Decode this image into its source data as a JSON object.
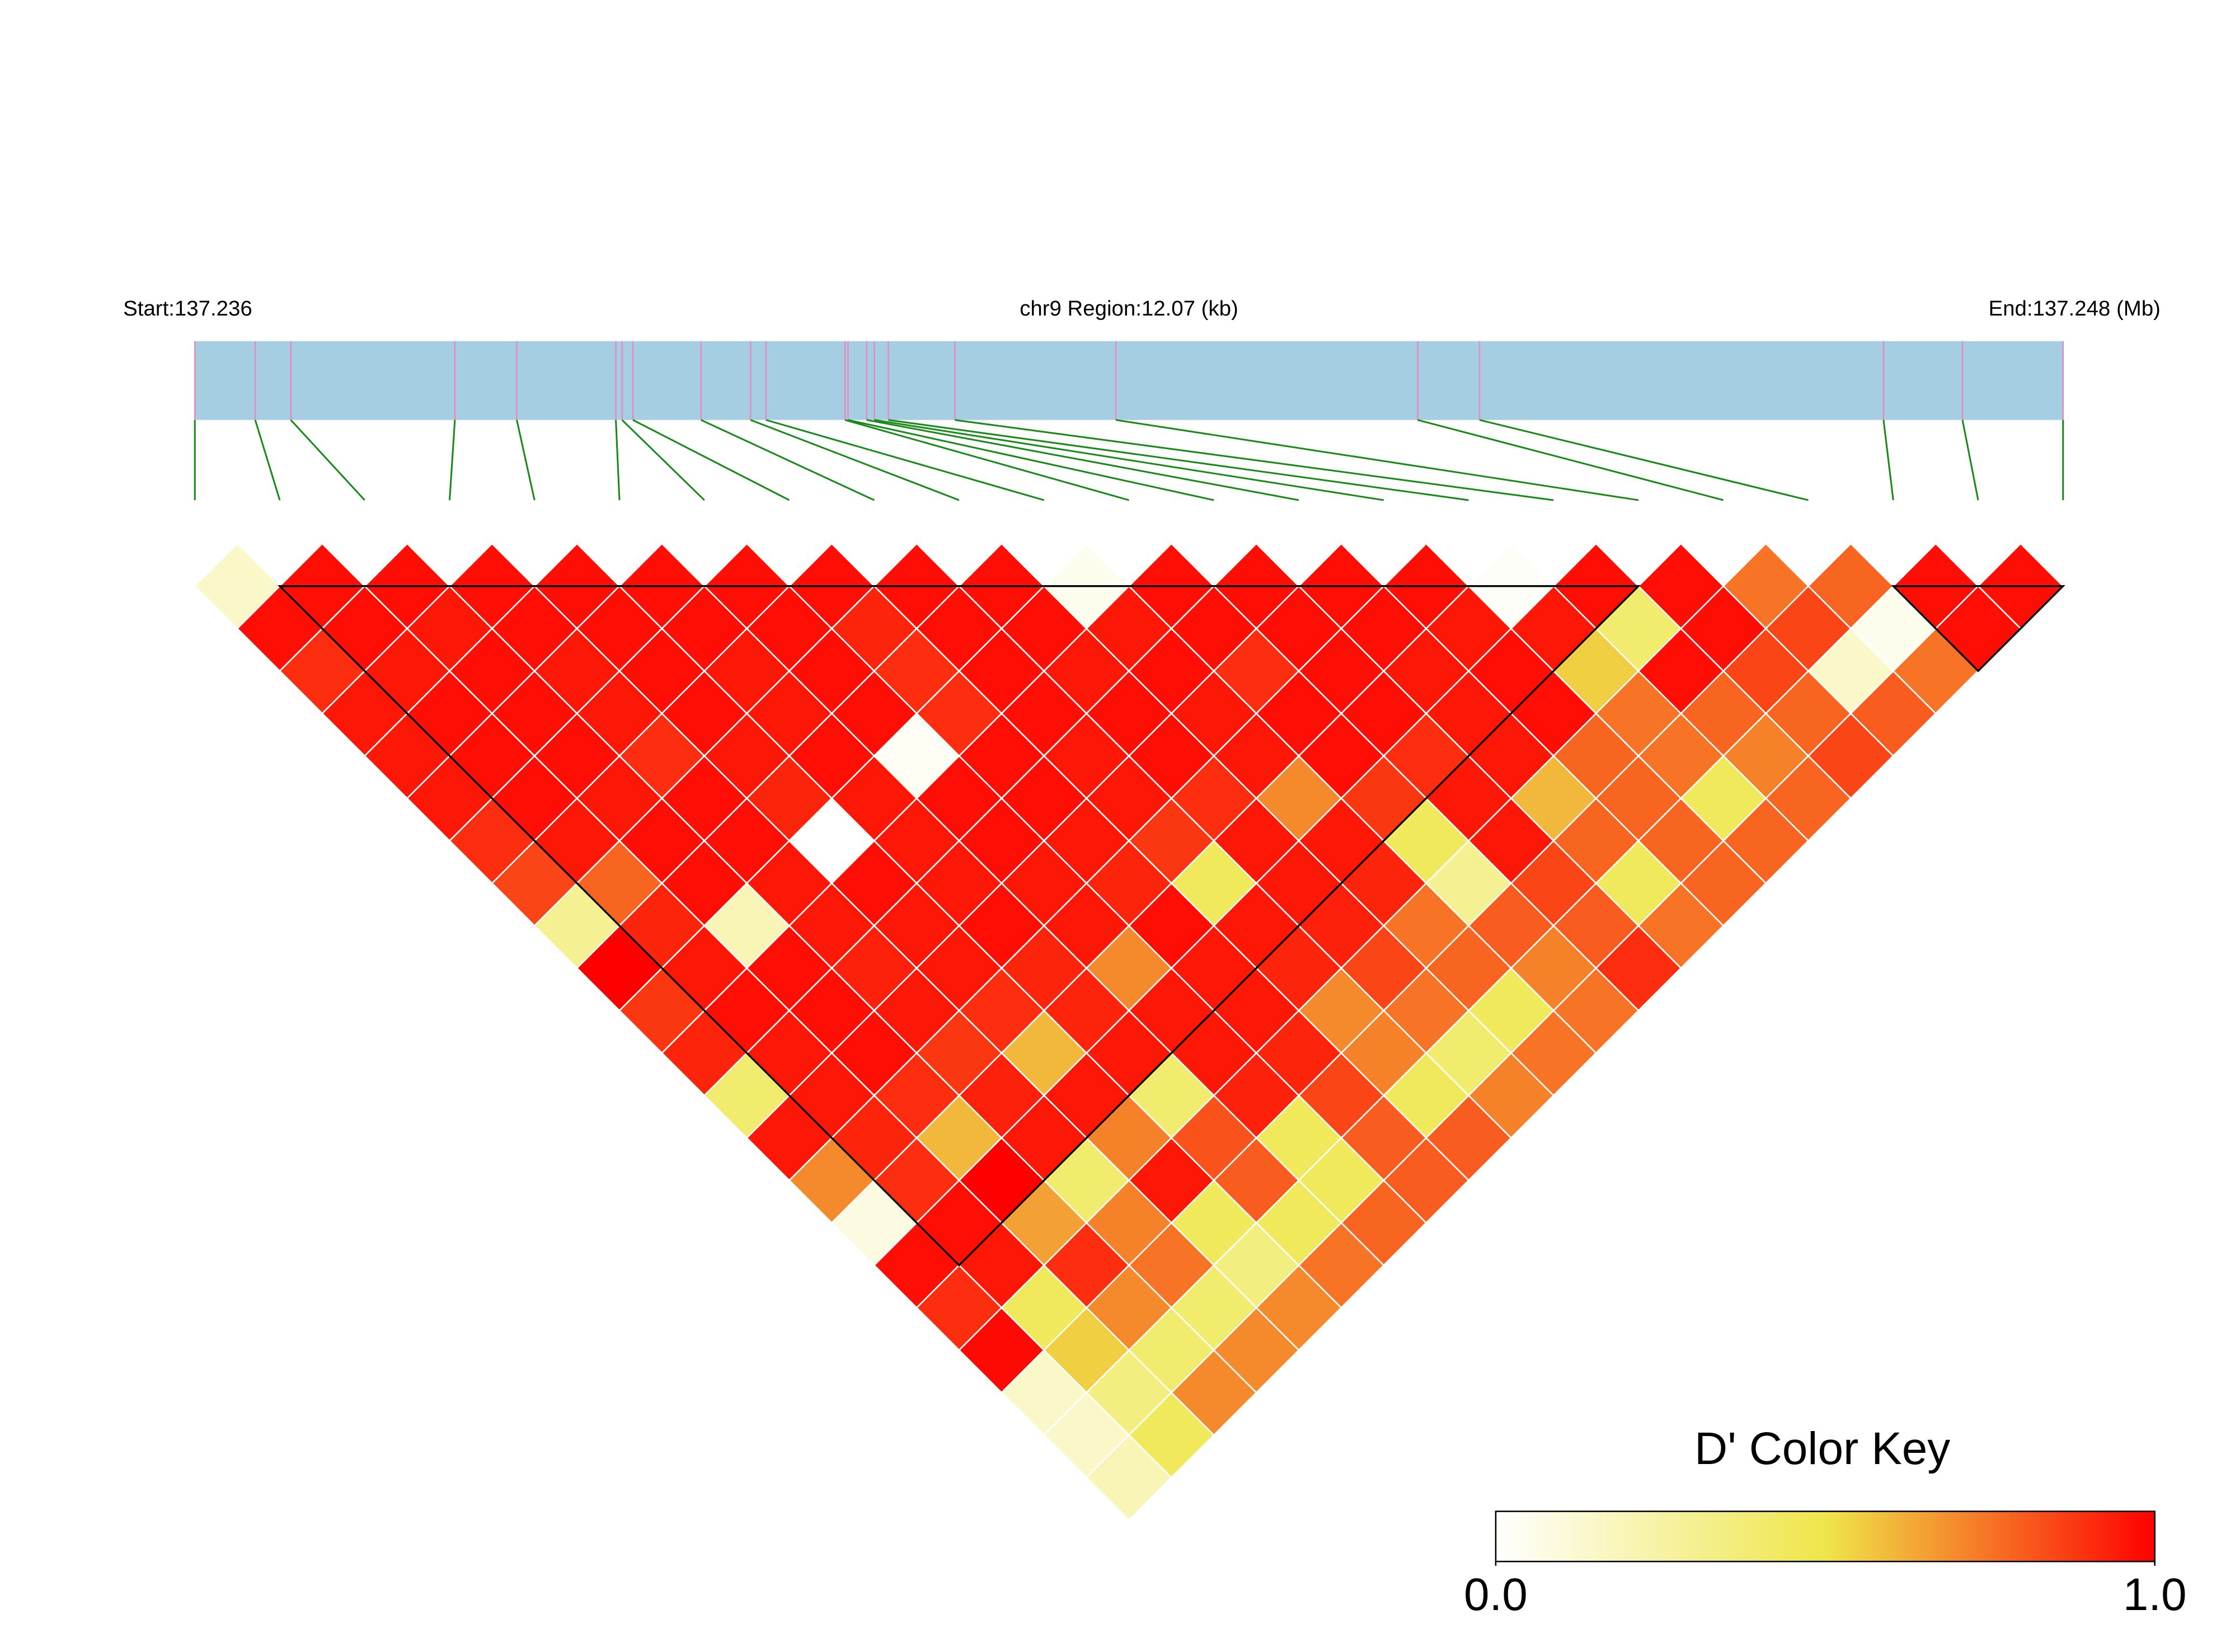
{
  "chart_data": {
    "type": "ld_heatmap",
    "start_label": "Start:137.236",
    "region_label": "chr9 Region:12.07 (kb)",
    "end_label": "End:137.248 (Mb)",
    "legend_title": "D' Color Key",
    "xlim": [
      0,
      12.07
    ],
    "snp_positions": [
      0.0,
      0.39,
      0.62,
      1.68,
      2.08,
      2.72,
      2.76,
      2.83,
      3.27,
      3.59,
      3.69,
      4.2,
      4.22,
      4.34,
      4.39,
      4.48,
      4.91,
      5.95,
      7.9,
      8.3,
      10.91,
      11.42,
      12.07
    ],
    "ld": [
      [
        0.15,
        0.97,
        0.9,
        0.95,
        0.95,
        0.95,
        0.9,
        0.85,
        0.3,
        1.0,
        0.88,
        0.92,
        0.4,
        0.95,
        0.7,
        0.08,
        0.97,
        0.9,
        0.98,
        0.15,
        0.15,
        0.2
      ],
      [
        0.97,
        0.97,
        0.95,
        0.97,
        0.97,
        0.97,
        0.95,
        0.78,
        0.92,
        0.95,
        0.97,
        0.95,
        0.95,
        0.92,
        0.9,
        0.97,
        0.95,
        0.45,
        0.55,
        0.35,
        0.45
      ],
      [
        0.97,
        0.95,
        0.97,
        0.97,
        0.97,
        0.95,
        0.97,
        0.97,
        0.2,
        0.97,
        0.97,
        0.97,
        0.9,
        0.6,
        1.0,
        0.65,
        0.9,
        0.7,
        0.4,
        0.7
      ],
      [
        0.97,
        0.97,
        0.95,
        0.95,
        0.9,
        0.97,
        0.97,
        0.95,
        0.95,
        0.93,
        0.95,
        0.88,
        0.93,
        0.95,
        0.4,
        0.72,
        0.75,
        0.4,
        0.7
      ],
      [
        0.97,
        0.97,
        0.97,
        0.97,
        0.95,
        0.92,
        0.0,
        0.97,
        0.95,
        0.95,
        0.9,
        0.6,
        0.95,
        0.72,
        0.95,
        0.45,
        0.35,
        0.7
      ],
      [
        0.97,
        0.97,
        0.95,
        0.95,
        0.97,
        0.95,
        0.95,
        0.95,
        0.97,
        0.92,
        0.92,
        0.95,
        0.4,
        0.82,
        0.8,
        0.45,
        0.75
      ],
      [
        0.97,
        0.97,
        0.97,
        0.97,
        0.03,
        0.97,
        0.97,
        0.95,
        0.95,
        0.7,
        0.95,
        0.95,
        0.93,
        0.45,
        0.45,
        0.78
      ],
      [
        0.97,
        0.92,
        0.9,
        0.9,
        0.97,
        0.97,
        0.95,
        0.92,
        0.97,
        0.95,
        0.95,
        0.92,
        0.85,
        0.8,
        0.8
      ],
      [
        0.97,
        0.97,
        0.97,
        0.97,
        0.95,
        0.95,
        0.88,
        0.45,
        0.95,
        0.92,
        0.7,
        0.72,
        0.45,
        0.8
      ],
      [
        0.97,
        0.97,
        0.95,
        0.97,
        0.97,
        0.9,
        0.95,
        0.95,
        0.93,
        0.85,
        0.75,
        0.4,
        0.72
      ],
      [
        0.05,
        0.95,
        0.97,
        0.95,
        0.95,
        0.7,
        0.95,
        0.92,
        0.75,
        0.78,
        0.45,
        0.75
      ],
      [
        0.97,
        0.97,
        0.9,
        0.97,
        0.97,
        0.88,
        0.45,
        0.3,
        0.8,
        0.72,
        0.75
      ],
      [
        0.97,
        0.97,
        0.97,
        0.97,
        0.9,
        0.95,
        0.95,
        0.85,
        0.8,
        0.9
      ],
      [
        0.97,
        0.97,
        0.95,
        0.95,
        0.95,
        0.6,
        0.78,
        0.45,
        0.75
      ],
      [
        0.97,
        0.95,
        0.97,
        0.97,
        0.78,
        0.78,
        0.78,
        0.78
      ],
      [
        0.02,
        0.95,
        0.55,
        0.75,
        0.75,
        0.45,
        0.78
      ],
      [
        0.97,
        0.4,
        0.97,
        0.78,
        0.72,
        0.78
      ],
      [
        0.97,
        0.97,
        0.85,
        0.78,
        0.85
      ],
      [
        0.75,
        0.85,
        0.15,
        0.8
      ],
      [
        0.78,
        0.05,
        0.75
      ],
      [
        0.97,
        0.97
      ],
      [
        0.97
      ]
    ],
    "blocks": [
      [
        1,
        17
      ],
      [
        20,
        22
      ]
    ],
    "colormap": [
      "#ffffff",
      "#eee64a",
      "#ff0000"
    ],
    "clim": [
      0,
      1
    ],
    "cticks": [
      {
        "value": 0,
        "label": "0.0"
      },
      {
        "value": 1,
        "label": "1.0"
      }
    ],
    "gene_bar_color": "#a6cee3",
    "marker_color": "#e58bc0",
    "connector_color": "#1a8a1a"
  }
}
